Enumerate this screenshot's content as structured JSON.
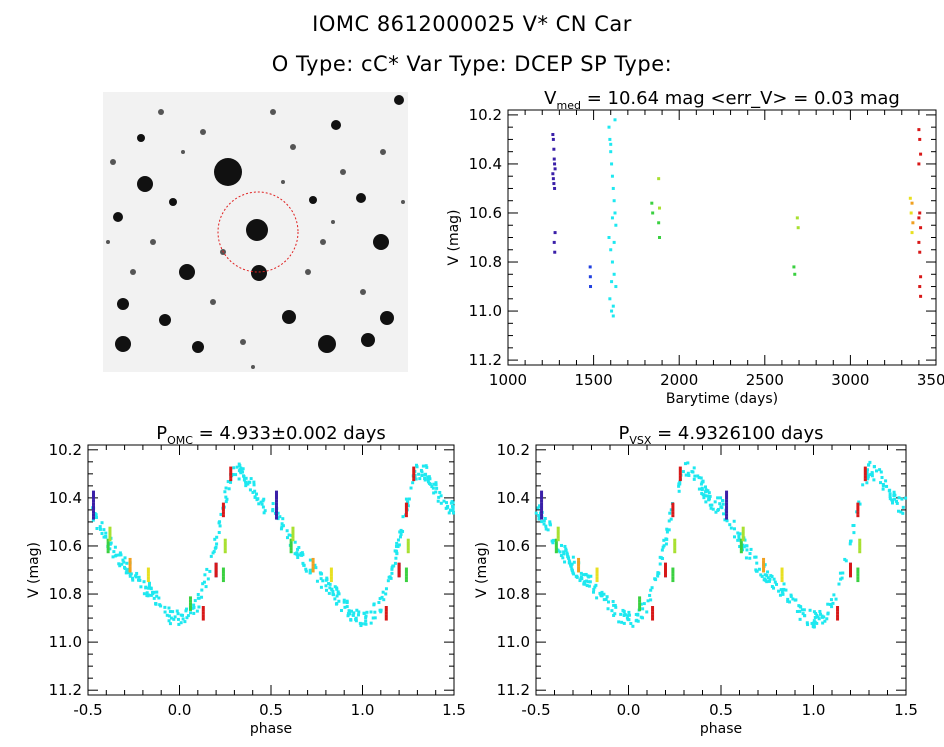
{
  "header": {
    "title": "IOMC 8612000025    V* CN Car",
    "subtitle": "O Type: cC*   Var Type: DCEP   SP Type:"
  },
  "colors": {
    "blue_dark": "#3a1fa8",
    "blue": "#2040e0",
    "cyan": "#1ee8f0",
    "green": "#3ad040",
    "lime": "#a8e030",
    "yellow": "#e8e020",
    "orange": "#f0a020",
    "red": "#d81818"
  },
  "sky_image": {
    "type": "finding-chart",
    "description_icon": "star-field-icon"
  },
  "chart_data": [
    {
      "type": "scatter",
      "title": "V_med = 10.64 mag <err_V> = 0.03 mag",
      "title_main": "V",
      "title_sub": "med",
      "title_rest": " = 10.64 mag <err_V> = 0.03 mag",
      "xlabel": "Barytime (days)",
      "ylabel": "V (mag)",
      "xlim": [
        1000,
        3500
      ],
      "ylim": [
        11.22,
        10.18
      ],
      "xticks": [
        1000,
        1500,
        2000,
        2500,
        3000,
        3500
      ],
      "yticks": [
        10.2,
        10.4,
        10.6,
        10.8,
        11.0,
        11.2
      ],
      "series": [
        {
          "color": "blue_dark",
          "x": [
            1262,
            1265,
            1268,
            1270,
            1272,
            1275,
            1262,
            1265,
            1268,
            1272,
            1275,
            1270,
            1273
          ],
          "y": [
            10.28,
            10.3,
            10.34,
            10.38,
            10.4,
            10.42,
            10.44,
            10.46,
            10.48,
            10.5,
            10.68,
            10.72,
            10.76
          ]
        },
        {
          "color": "blue",
          "x": [
            1480,
            1481,
            1482
          ],
          "y": [
            10.82,
            10.86,
            10.9
          ]
        },
        {
          "color": "cyan",
          "x": [
            1590,
            1595,
            1600,
            1605,
            1610,
            1615,
            1620,
            1625,
            1630,
            1590,
            1600,
            1610,
            1620,
            1630,
            1595,
            1605,
            1615,
            1625,
            1600,
            1610,
            1620,
            1605,
            1615
          ],
          "y": [
            10.25,
            10.3,
            10.35,
            10.4,
            10.45,
            10.5,
            10.55,
            10.6,
            10.65,
            10.7,
            10.75,
            10.8,
            10.85,
            10.9,
            10.95,
            11.0,
            11.02,
            10.22,
            10.32,
            10.62,
            10.72,
            10.88,
            10.98
          ]
        },
        {
          "color": "green",
          "x": [
            1840,
            1845,
            1880,
            1885,
            2670,
            2675
          ],
          "y": [
            10.56,
            10.6,
            10.64,
            10.7,
            10.82,
            10.85
          ]
        },
        {
          "color": "lime",
          "x": [
            1880,
            1885,
            2690,
            2695
          ],
          "y": [
            10.46,
            10.58,
            10.62,
            10.66
          ]
        },
        {
          "color": "yellow",
          "x": [
            3350,
            3355,
            3360
          ],
          "y": [
            10.54,
            10.6,
            10.68
          ]
        },
        {
          "color": "orange",
          "x": [
            3360,
            3365
          ],
          "y": [
            10.56,
            10.64
          ]
        },
        {
          "color": "red",
          "x": [
            3400,
            3405,
            3410,
            3400,
            3405,
            3410,
            3400,
            3405,
            3410,
            3405,
            3410,
            3400
          ],
          "y": [
            10.26,
            10.3,
            10.36,
            10.4,
            10.6,
            10.66,
            10.72,
            10.76,
            10.86,
            10.9,
            10.94,
            10.62
          ]
        }
      ]
    },
    {
      "type": "scatter",
      "title_main": "P",
      "title_sub": "OMC",
      "title_rest": " = 4.933±0.002 days",
      "xlabel": "phase",
      "ylabel": "V (mag)",
      "xlim": [
        -0.5,
        1.5
      ],
      "ylim": [
        11.22,
        10.18
      ],
      "xticks": [
        -0.5,
        0.0,
        0.5,
        1.0,
        1.5
      ],
      "yticks": [
        10.2,
        10.4,
        10.6,
        10.8,
        11.0,
        11.2
      ],
      "curve": {
        "phase": [
          -0.5,
          -0.45,
          -0.4,
          -0.35,
          -0.3,
          -0.25,
          -0.2,
          -0.15,
          -0.1,
          -0.05,
          0.0,
          0.05,
          0.1,
          0.15,
          0.2,
          0.25,
          0.3,
          0.35,
          0.4,
          0.45,
          0.5,
          0.55,
          0.6,
          0.65,
          0.7,
          0.75,
          0.8,
          0.85,
          0.9,
          0.95,
          1.0,
          1.05,
          1.1,
          1.15,
          1.2,
          1.25,
          1.3,
          1.35,
          1.4,
          1.45,
          1.5
        ],
        "mag": [
          10.43,
          10.5,
          10.57,
          10.63,
          10.68,
          10.72,
          10.76,
          10.8,
          10.85,
          10.89,
          10.91,
          10.89,
          10.84,
          10.73,
          10.58,
          10.4,
          10.28,
          10.3,
          10.36,
          10.43,
          10.43,
          10.5,
          10.57,
          10.63,
          10.68,
          10.72,
          10.76,
          10.8,
          10.85,
          10.89,
          10.91,
          10.89,
          10.84,
          10.73,
          10.58,
          10.4,
          10.28,
          10.3,
          10.36,
          10.43,
          10.43
        ]
      },
      "colored_points": [
        {
          "color": "blue_dark",
          "phase": [
            -0.47,
            -0.47,
            0.2,
            0.53,
            0.53,
            1.2
          ],
          "mag": [
            10.4,
            10.46,
            10.7,
            10.4,
            10.46,
            10.7
          ]
        },
        {
          "color": "green",
          "phase": [
            -0.39,
            0.24,
            0.61,
            1.24,
            0.06
          ],
          "mag": [
            10.6,
            10.72,
            10.6,
            10.72,
            10.84
          ]
        },
        {
          "color": "lime",
          "phase": [
            -0.38,
            0.62,
            0.25,
            1.25
          ],
          "mag": [
            10.55,
            10.55,
            10.6,
            10.6
          ]
        },
        {
          "color": "yellow",
          "phase": [
            -0.17,
            0.83
          ],
          "mag": [
            10.72,
            10.72
          ]
        },
        {
          "color": "orange",
          "phase": [
            -0.27,
            0.73
          ],
          "mag": [
            10.68,
            10.68
          ]
        },
        {
          "color": "red",
          "phase": [
            0.13,
            0.2,
            0.24,
            0.28,
            1.13,
            1.2,
            1.24,
            1.28
          ],
          "mag": [
            10.88,
            10.7,
            10.45,
            10.3,
            10.88,
            10.7,
            10.45,
            10.3
          ]
        }
      ]
    },
    {
      "type": "scatter",
      "title_main": "P",
      "title_sub": "VSX",
      "title_rest": " = 4.9326100 days",
      "xlabel": "phase",
      "ylabel": "V (mag)",
      "xlim": [
        -0.5,
        1.5
      ],
      "ylim": [
        11.22,
        10.18
      ],
      "xticks": [
        -0.5,
        0.0,
        0.5,
        1.0,
        1.5
      ],
      "yticks": [
        10.2,
        10.4,
        10.6,
        10.8,
        11.0,
        11.2
      ]
    }
  ]
}
